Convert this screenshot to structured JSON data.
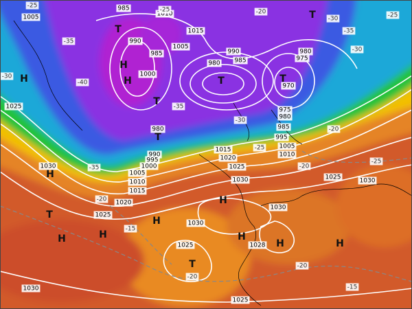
{
  "isobar_labels": [
    "1005",
    "985",
    "1010",
    "1015",
    "1005",
    "985",
    "990",
    "1000",
    "990",
    "985",
    "980",
    "980",
    "975",
    "970",
    "975",
    "980",
    "985",
    "995",
    "1005",
    "1010",
    "980",
    "990",
    "995",
    "1000",
    "1005",
    "1010",
    "1015",
    "1020",
    "1025",
    "1030",
    "1015",
    "1020",
    "1025",
    "1030",
    "1030",
    "1025",
    "1030",
    "1025",
    "1028",
    "1030",
    "1025",
    "1025",
    "1030"
  ],
  "temperature_labels": [
    "-25",
    "-25",
    "-20",
    "-25",
    "-30",
    "-35",
    "-30",
    "-35",
    "-40",
    "-35",
    "-30",
    "-25",
    "-20",
    "-25",
    "-20",
    "-15",
    "-20",
    "-20",
    "-15",
    "-20",
    "-30",
    "-35"
  ],
  "pressure_centers": [
    "H",
    "H",
    "H",
    "H",
    "H",
    "H",
    "H",
    "H",
    "H",
    "T",
    "H",
    "H",
    "T",
    "T",
    "T",
    "T",
    "T",
    "T",
    "T"
  ]
}
